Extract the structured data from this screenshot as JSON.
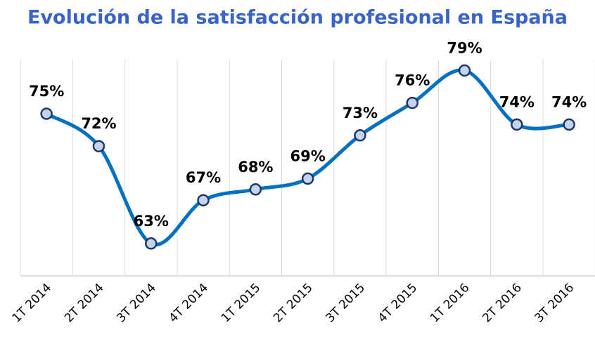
{
  "chart_data": {
    "type": "line",
    "title": "Evolución de la satisfacción profesional en España",
    "categories": [
      "1T 2014",
      "2T 2014",
      "3T 2014",
      "4T 2014",
      "1T 2015",
      "2T 2015",
      "3T 2015",
      "4T 2015",
      "1T 2016",
      "2T 2016",
      "3T 2016"
    ],
    "values": [
      75,
      72,
      63,
      67,
      68,
      69,
      73,
      76,
      79,
      74,
      74
    ],
    "value_labels": [
      "75%",
      "72%",
      "63%",
      "67%",
      "68%",
      "69%",
      "73%",
      "76%",
      "79%",
      "74%",
      "74%"
    ],
    "color": "#0070c0",
    "marker_color": "#c5d4ee",
    "ylim": [
      60,
      80
    ],
    "smooth": true
  }
}
